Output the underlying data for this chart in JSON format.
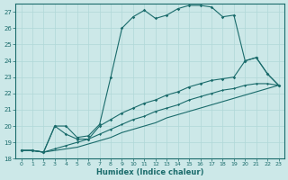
{
  "xlabel": "Humidex (Indice chaleur)",
  "xlim": [
    -0.5,
    23.5
  ],
  "ylim": [
    18,
    27.5
  ],
  "yticks": [
    18,
    19,
    20,
    21,
    22,
    23,
    24,
    25,
    26,
    27
  ],
  "xticks": [
    0,
    1,
    2,
    3,
    4,
    5,
    6,
    7,
    8,
    9,
    10,
    11,
    12,
    13,
    14,
    15,
    16,
    17,
    18,
    19,
    20,
    21,
    22,
    23
  ],
  "bg_color": "#cce8e8",
  "line_color": "#1a6b6b",
  "grid_color": "#b0d8d8",
  "series1_x": [
    0,
    1,
    2,
    3,
    4,
    5,
    6,
    7,
    8,
    9,
    10,
    11,
    12,
    13,
    14,
    15,
    16,
    17,
    18,
    19,
    20,
    21,
    22,
    23
  ],
  "series1_y": [
    18.5,
    18.5,
    18.4,
    20.0,
    20.0,
    19.3,
    19.4,
    20.1,
    23.0,
    26.0,
    26.7,
    27.1,
    26.6,
    26.8,
    27.2,
    27.4,
    27.4,
    27.3,
    26.7,
    26.8,
    24.0,
    24.2,
    23.2,
    22.5
  ],
  "series2_x": [
    0,
    1,
    2,
    3,
    4,
    5,
    6,
    7,
    8,
    9,
    10,
    11,
    12,
    13,
    14,
    15,
    16,
    17,
    18,
    19,
    20,
    21,
    22,
    23
  ],
  "series2_y": [
    18.5,
    18.5,
    18.4,
    20.0,
    19.5,
    19.2,
    19.2,
    20.0,
    20.4,
    20.8,
    21.1,
    21.4,
    21.6,
    21.9,
    22.1,
    22.4,
    22.6,
    22.8,
    22.9,
    23.0,
    24.0,
    24.2,
    23.2,
    22.5
  ],
  "series3_x": [
    0,
    1,
    2,
    3,
    4,
    5,
    6,
    7,
    8,
    9,
    10,
    11,
    12,
    13,
    14,
    15,
    16,
    17,
    18,
    19,
    20,
    21,
    22,
    23
  ],
  "series3_y": [
    18.5,
    18.5,
    18.4,
    18.6,
    18.8,
    19.0,
    19.2,
    19.5,
    19.8,
    20.1,
    20.4,
    20.6,
    20.9,
    21.1,
    21.3,
    21.6,
    21.8,
    22.0,
    22.2,
    22.3,
    22.5,
    22.6,
    22.6,
    22.5
  ],
  "series4_x": [
    0,
    1,
    2,
    3,
    4,
    5,
    6,
    7,
    8,
    9,
    10,
    11,
    12,
    13,
    14,
    15,
    16,
    17,
    18,
    19,
    20,
    21,
    22,
    23
  ],
  "series4_y": [
    18.5,
    18.5,
    18.4,
    18.5,
    18.6,
    18.7,
    18.9,
    19.1,
    19.3,
    19.6,
    19.8,
    20.0,
    20.2,
    20.5,
    20.7,
    20.9,
    21.1,
    21.3,
    21.5,
    21.7,
    21.9,
    22.1,
    22.3,
    22.5
  ]
}
